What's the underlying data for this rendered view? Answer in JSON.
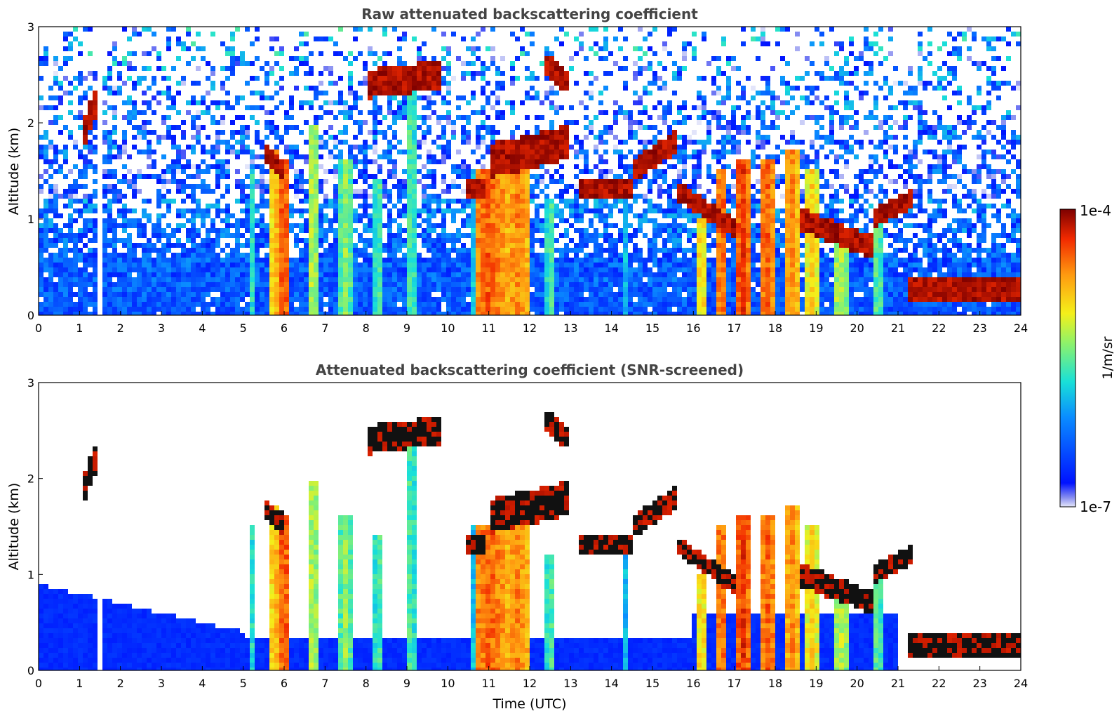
{
  "figure": {
    "colorbar": {
      "max_label": "1e-4",
      "min_label": "1e-7",
      "unit_label": "1/m/sr",
      "scale": "log"
    }
  },
  "chart_data": [
    {
      "type": "heatmap",
      "title": "Raw attenuated backscattering coefficient",
      "xlabel": "",
      "ylabel": "Altitude (km)",
      "xlim": [
        0,
        24
      ],
      "ylim": [
        0,
        3
      ],
      "x_ticks": [
        "0",
        "1",
        "2",
        "3",
        "4",
        "5",
        "6",
        "7",
        "8",
        "9",
        "10",
        "11",
        "12",
        "13",
        "14",
        "15",
        "16",
        "17",
        "18",
        "19",
        "20",
        "21",
        "22",
        "23",
        "24"
      ],
      "y_ticks": [
        "0",
        "1",
        "2",
        "3"
      ],
      "z_unit": "1/m/sr",
      "z_range": [
        "1e-7",
        "1e-4"
      ]
    },
    {
      "type": "heatmap",
      "title": "Attenuated backscattering coefficient (SNR-screened)",
      "xlabel": "Time (UTC)",
      "ylabel": "Altitude (km)",
      "xlim": [
        0,
        24
      ],
      "ylim": [
        0,
        3
      ],
      "x_ticks": [
        "0",
        "1",
        "2",
        "3",
        "4",
        "5",
        "6",
        "7",
        "8",
        "9",
        "10",
        "11",
        "12",
        "13",
        "14",
        "15",
        "16",
        "17",
        "18",
        "19",
        "20",
        "21",
        "22",
        "23",
        "24"
      ],
      "y_ticks": [
        "0",
        "1",
        "2",
        "3"
      ],
      "z_unit": "1/m/sr",
      "z_range": [
        "1e-7",
        "1e-4"
      ]
    }
  ]
}
